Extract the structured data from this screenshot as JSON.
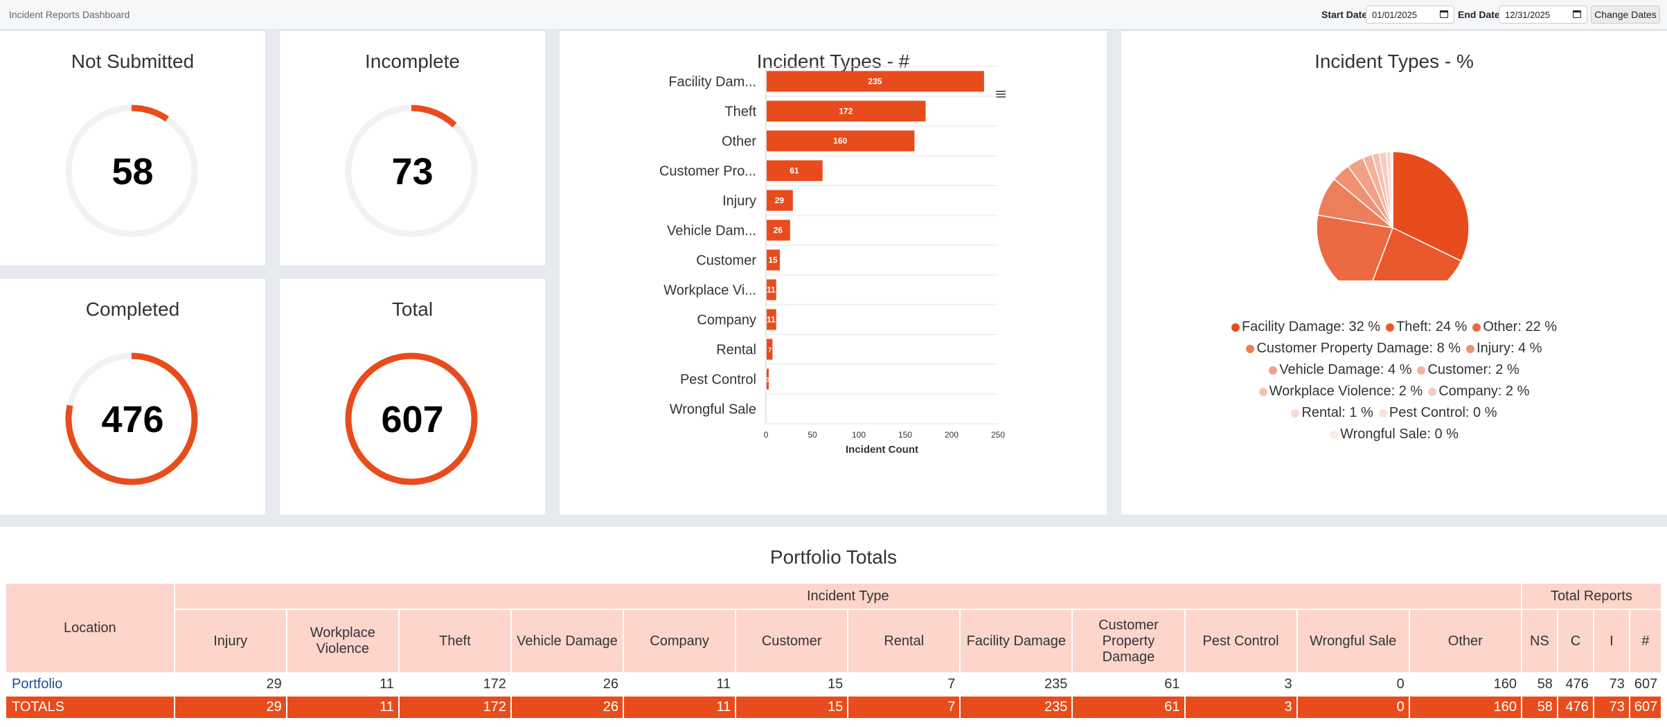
{
  "app": {
    "title": "Incident Reports Dashboard",
    "start_label": "Start Date:",
    "start_value": "01/01/2025",
    "end_label": "End Date:",
    "end_value": "12/31/2025",
    "change_button": "Change Dates"
  },
  "colors": {
    "accent": "#e84c1c",
    "track": "#f2f2f2",
    "header_bg": "#fdd5cb"
  },
  "kpis": {
    "not_submitted": {
      "title": "Not Submitted",
      "value": "58",
      "fraction": 0.0956
    },
    "incomplete": {
      "title": "Incomplete",
      "value": "73",
      "fraction": 0.1203
    },
    "completed": {
      "title": "Completed",
      "value": "476",
      "fraction": 0.7842
    },
    "total": {
      "title": "Total",
      "value": "607",
      "fraction": 1.0
    }
  },
  "bar_panel": {
    "title": "Incident Types - #",
    "menu_icon": "hamburger-menu-icon"
  },
  "pie_panel": {
    "title": "Incident Types - %"
  },
  "chart_data": [
    {
      "type": "bar",
      "orientation": "horizontal",
      "title": "Incident Types - #",
      "categories": [
        "Facility Dam...",
        "Theft",
        "Other",
        "Customer Pro...",
        "Injury",
        "Vehicle Dam...",
        "Customer",
        "Workplace Vi...",
        "Company",
        "Rental",
        "Pest Control",
        "Wrongful Sale"
      ],
      "values": [
        235,
        172,
        160,
        61,
        29,
        26,
        15,
        11,
        11,
        7,
        3,
        0
      ],
      "data_labels": [
        "235",
        "172",
        "160",
        "61",
        "29",
        "26",
        "15",
        "11",
        "11",
        "7",
        "3",
        ""
      ],
      "xlabel": "Incident Count",
      "xticks": [
        0,
        50,
        100,
        150,
        200,
        250
      ],
      "xlim": [
        0,
        250
      ],
      "grid": true,
      "color": "#e84c1c"
    },
    {
      "type": "pie",
      "title": "Incident Types - %",
      "legend_position": "bottom",
      "values": [
        235,
        172,
        160,
        61,
        29,
        26,
        15,
        11,
        11,
        7,
        3,
        0
      ],
      "slices": [
        {
          "label": "Facility Damage: 32 %",
          "value": 235,
          "color": "#e84c1c"
        },
        {
          "label": "Theft: 24 %",
          "value": 172,
          "color": "#e9582b"
        },
        {
          "label": "Other: 22 %",
          "value": 160,
          "color": "#eb6a42"
        },
        {
          "label": "Customer Property Damage: 8 %",
          "value": 61,
          "color": "#ed7e5c"
        },
        {
          "label": "Injury: 4 %",
          "value": 29,
          "color": "#ef9274"
        },
        {
          "label": "Vehicle Damage: 4 %",
          "value": 26,
          "color": "#f1a18a"
        },
        {
          "label": "Customer: 2 %",
          "value": 15,
          "color": "#f3b19d"
        },
        {
          "label": "Workplace Violence: 2 %",
          "value": 11,
          "color": "#f5c0b0"
        },
        {
          "label": "Company: 2 %",
          "value": 11,
          "color": "#f7cdc0"
        },
        {
          "label": "Rental: 1 %",
          "value": 7,
          "color": "#f9d9cf"
        },
        {
          "label": "Pest Control: 0 %",
          "value": 3,
          "color": "#fbe3dc"
        },
        {
          "label": "Wrongful Sale: 0 %",
          "value": 0,
          "color": "#fcece7"
        }
      ]
    }
  ],
  "portfolio": {
    "title": "Portfolio Totals",
    "location_header": "Location",
    "incident_type_header": "Incident Type",
    "total_reports_header": "Total Reports",
    "columns": [
      "Injury",
      "Workplace Violence",
      "Theft",
      "Vehicle Damage",
      "Company",
      "Customer",
      "Rental",
      "Facility Damage",
      "Customer Property Damage",
      "Pest Control",
      "Wrongful Sale",
      "Other"
    ],
    "total_columns": [
      "NS",
      "C",
      "I",
      "#"
    ],
    "rows": [
      {
        "location": "Portfolio",
        "values": [
          "29",
          "11",
          "172",
          "26",
          "11",
          "15",
          "7",
          "235",
          "61",
          "3",
          "0",
          "160"
        ],
        "totals": [
          "58",
          "476",
          "73",
          "607"
        ]
      }
    ],
    "totals_row": {
      "location": "TOTALS",
      "values": [
        "29",
        "11",
        "172",
        "26",
        "11",
        "15",
        "7",
        "235",
        "61",
        "3",
        "0",
        "160"
      ],
      "totals": [
        "58",
        "476",
        "73",
        "607"
      ]
    }
  }
}
